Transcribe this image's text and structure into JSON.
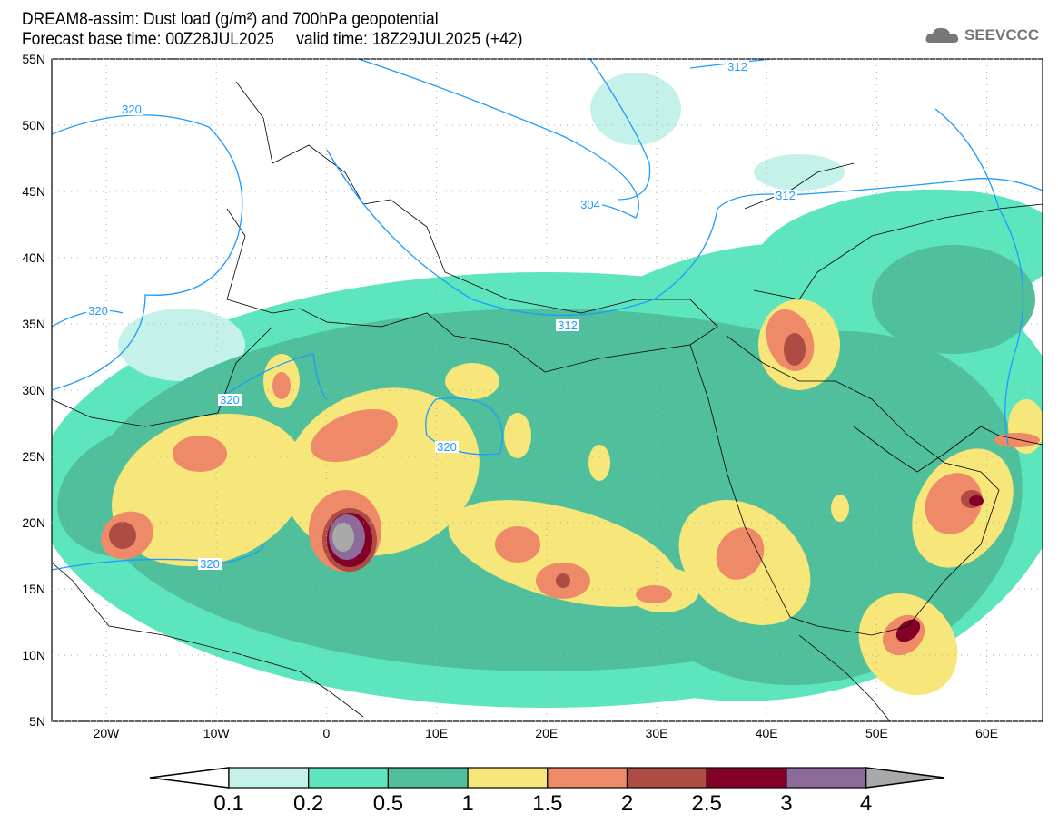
{
  "header": {
    "title_line1": "DREAM8-assim: Dust load (g/m²) and 700hPa geopotential",
    "title_line2": "Forecast base time: 00Z28JUL2025     valid time: 18Z29JUL2025 (+42)",
    "logo_text": "SEEVCCC"
  },
  "axes": {
    "lat_labels": [
      "55N",
      "50N",
      "45N",
      "40N",
      "35N",
      "30N",
      "25N",
      "20N",
      "15N",
      "10N",
      "5N"
    ],
    "lon_labels": [
      "20W",
      "10W",
      "0",
      "10E",
      "20E",
      "30E",
      "40E",
      "50E",
      "60E"
    ]
  },
  "contour_labels": [
    "320",
    "320",
    "320",
    "320",
    "320",
    "312",
    "312",
    "312",
    "304"
  ],
  "colorbar": {
    "ticks": [
      "0.1",
      "0.2",
      "0.5",
      "1",
      "1.5",
      "2",
      "2.5",
      "3",
      "4"
    ],
    "colors": [
      "#c4f2ea",
      "#5de5bd",
      "#50bf9b",
      "#f7e67a",
      "#ee8a68",
      "#ad4c42",
      "#830029",
      "#8d6a9a",
      "#a9a9a9"
    ],
    "contour_color": "#1e9bff"
  }
}
